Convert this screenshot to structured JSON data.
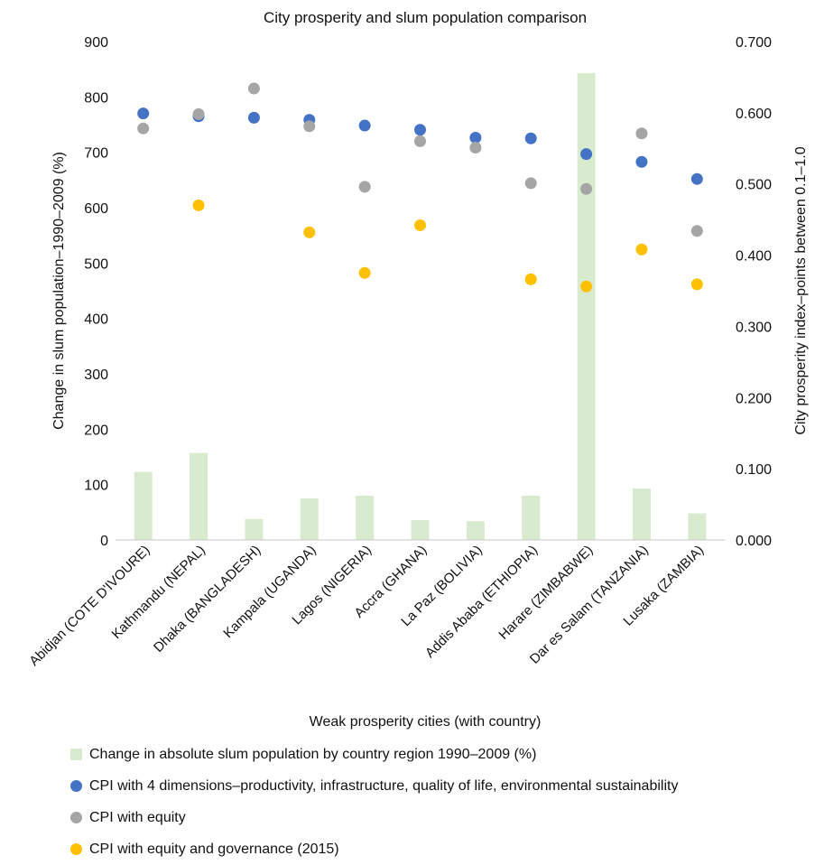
{
  "chart_data": {
    "type": "bar",
    "title": "City prosperity and slum population comparison",
    "xlabel": "Weak prosperity cities (with country)",
    "ylabel": "Change in slum population–1990–2009 (%)",
    "y2label": "City prosperity index–points between 0.1–1.0",
    "ylim": [
      0,
      900
    ],
    "y2lim": [
      0,
      0.7
    ],
    "yticks": [
      "0",
      "100",
      "200",
      "300",
      "400",
      "500",
      "600",
      "700",
      "800",
      "900"
    ],
    "y2ticks": [
      "0.000",
      "0.100",
      "0.200",
      "0.300",
      "0.400",
      "0.500",
      "0.600",
      "0.700"
    ],
    "grid": false,
    "legend_position": "bottom",
    "categories": [
      "Abidjan (COTE D'IVOURE)",
      "Kathmandu (NEPAL)",
      "Dhaka (BANGLADESH)",
      "Kampala (UGANDA)",
      "Lagos (NIGERIA)",
      "Accra (GHANA)",
      "La Paz (BOLIVIA)",
      "Addis Ababa (ETHIOPIA)",
      "Harare (ZIMBABWE)",
      "Dar es Salam (TANZANIA)",
      "Lusaka (ZAMBIA)"
    ],
    "series": [
      {
        "name": "Change in absolute slum population by country region 1990–2009 (%)",
        "kind": "bar",
        "axis": "left",
        "color": "#d9ebcf",
        "values": [
          123,
          157,
          38,
          75,
          80,
          36,
          34,
          80,
          843,
          93,
          48
        ]
      },
      {
        "name": "CPI with 4 dimensions–productivity, infrastructure, quality of life, environmental sustainability",
        "kind": "scatter",
        "axis": "right",
        "color": "#4472c4",
        "values": [
          0.599,
          0.595,
          0.593,
          0.59,
          0.582,
          0.576,
          0.565,
          0.564,
          0.542,
          0.531,
          0.507
        ]
      },
      {
        "name": "CPI with equity",
        "kind": "scatter",
        "axis": "right",
        "color": "#a5a5a5",
        "values": [
          0.578,
          0.598,
          0.634,
          0.581,
          0.496,
          0.56,
          0.551,
          0.501,
          0.493,
          0.571,
          0.434
        ]
      },
      {
        "name": "CPI with equity and governance (2015)",
        "kind": "scatter",
        "axis": "right",
        "color": "#ffc000",
        "values": [
          null,
          0.47,
          null,
          0.432,
          0.375,
          0.442,
          null,
          0.366,
          0.356,
          0.408,
          0.359
        ]
      }
    ]
  }
}
